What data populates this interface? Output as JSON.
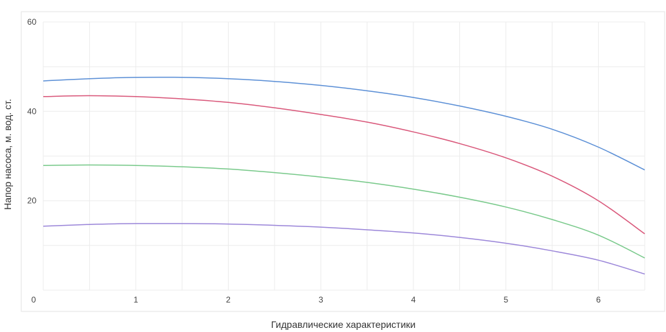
{
  "chart_data": {
    "type": "line",
    "title": "",
    "xlabel": "Гидравлические характеристики",
    "ylabel": "Напор насоса, м. вод. ст.",
    "xlim": [
      0,
      6.5
    ],
    "ylim": [
      0,
      60
    ],
    "x_ticks": [
      "0",
      "1",
      "2",
      "3",
      "4",
      "5",
      "6"
    ],
    "y_ticks": [
      "20",
      "40",
      "60"
    ],
    "grid": true,
    "legend": "none",
    "colors": [
      "#5b8fd6",
      "#d9577a",
      "#78c98a",
      "#9b86d9"
    ],
    "series": [
      {
        "x": [
          0,
          0.5,
          1,
          1.5,
          2,
          2.5,
          3,
          3.5,
          4,
          4.5,
          5,
          5.5,
          6,
          6.5
        ],
        "values": [
          46.8,
          47.3,
          47.6,
          47.6,
          47.3,
          46.7,
          45.8,
          44.6,
          43.1,
          41.2,
          38.9,
          36.0,
          32.0,
          26.9
        ]
      },
      {
        "x": [
          0,
          0.5,
          1,
          1.5,
          2,
          2.5,
          3,
          3.5,
          4,
          4.5,
          5,
          5.5,
          6,
          6.5
        ],
        "values": [
          43.3,
          43.5,
          43.3,
          42.8,
          42.0,
          40.8,
          39.3,
          37.6,
          35.4,
          32.8,
          29.6,
          25.5,
          20.0,
          12.6
        ]
      },
      {
        "x": [
          0,
          0.5,
          1,
          1.5,
          2,
          2.5,
          3,
          3.5,
          4,
          4.5,
          5,
          5.5,
          6,
          6.5
        ],
        "values": [
          27.9,
          28.0,
          27.9,
          27.6,
          27.1,
          26.3,
          25.3,
          24.1,
          22.6,
          20.8,
          18.6,
          15.8,
          12.3,
          7.2
        ]
      },
      {
        "x": [
          0,
          0.5,
          1,
          1.5,
          2,
          2.5,
          3,
          3.5,
          4,
          4.5,
          5,
          5.5,
          6,
          6.5
        ],
        "values": [
          14.3,
          14.7,
          14.9,
          14.9,
          14.8,
          14.5,
          14.1,
          13.5,
          12.8,
          11.8,
          10.5,
          8.8,
          6.7,
          3.6
        ]
      }
    ]
  }
}
